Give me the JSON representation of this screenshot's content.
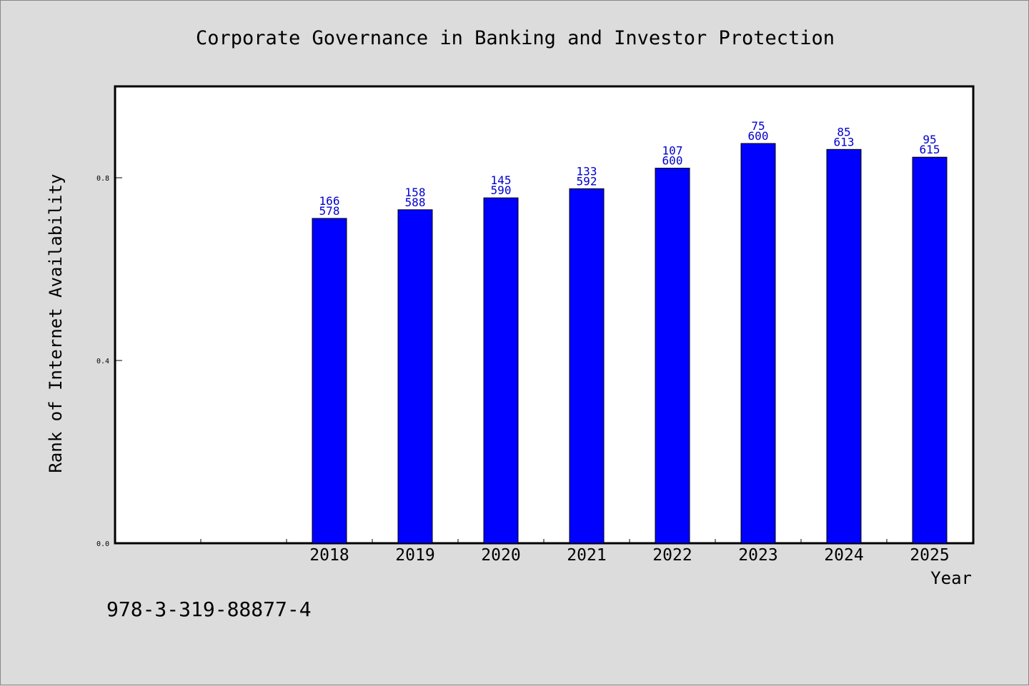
{
  "chart_data": {
    "type": "bar",
    "title": "Corporate Governance in Banking and Investor Protection",
    "xlabel": "Year",
    "ylabel": "Rank of Internet Availability",
    "categories": [
      "2018",
      "2019",
      "2020",
      "2021",
      "2022",
      "2023",
      "2024",
      "2025"
    ],
    "values": [
      0.711,
      0.73,
      0.756,
      0.776,
      0.821,
      0.875,
      0.862,
      0.845
    ],
    "labels_top": [
      "166",
      "158",
      "145",
      "133",
      "107",
      "75",
      "85",
      "95"
    ],
    "labels_bottom": [
      "578",
      "588",
      "590",
      "592",
      "600",
      "600",
      "613",
      "615"
    ],
    "ylim": [
      0.0,
      1.0
    ],
    "yticks": [
      "0.0",
      "0.4",
      "0.8"
    ],
    "ytick_values": [
      0.0,
      0.4,
      0.8
    ],
    "grid": false,
    "bar_color": "#0000ff",
    "label_color": "#0000cc"
  },
  "footer": {
    "isbn": "978-3-319-88877-4"
  }
}
